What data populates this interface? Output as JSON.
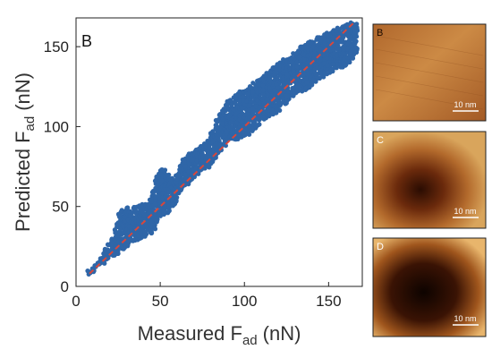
{
  "chart_data": {
    "type": "scatter",
    "panel_label": "B",
    "xlabel": "Measured F",
    "xlabel_sub": "ad",
    "xlabel_unit": "(nN)",
    "ylabel": "Predicted F",
    "ylabel_sub": "ad",
    "ylabel_unit": "(nN)",
    "xlim": [
      0,
      170
    ],
    "ylim": [
      0,
      168
    ],
    "xticks": [
      0,
      50,
      100,
      150
    ],
    "yticks": [
      0,
      50,
      100,
      150
    ],
    "grid": false,
    "point_color": "#2f66a8",
    "reference_line": {
      "x": [
        8,
        166
      ],
      "y": [
        8,
        166
      ],
      "color": "#d9473b",
      "style": "dashed"
    },
    "series": [
      {
        "x": [
          8,
          10,
          12,
          14,
          16,
          18,
          20,
          22,
          24,
          26,
          28,
          30,
          32,
          34,
          36,
          38,
          40,
          42,
          44,
          46,
          48,
          50,
          52,
          54,
          56,
          58,
          60,
          62,
          64,
          66,
          68,
          70,
          72,
          74,
          76,
          78,
          80,
          82,
          84,
          86,
          88,
          90,
          92,
          94,
          96,
          98,
          100,
          102,
          104,
          106,
          108,
          110,
          112,
          114,
          116,
          118,
          120,
          122,
          124,
          126,
          128,
          130,
          132,
          134,
          136,
          138,
          140,
          142,
          144,
          146,
          148,
          150,
          152,
          154,
          156,
          158,
          160,
          162,
          164,
          166
        ],
        "y_low": [
          7,
          9,
          11,
          13,
          14,
          16,
          18,
          19,
          20,
          22,
          23,
          25,
          27,
          28,
          29,
          30,
          31,
          32,
          33,
          35,
          40,
          44,
          45,
          46,
          47,
          49,
          53,
          57,
          61,
          64,
          66,
          68,
          70,
          72,
          73,
          74,
          76,
          78,
          80,
          84,
          88,
          90,
          91,
          92,
          92,
          93,
          94,
          95,
          97,
          99,
          101,
          103,
          104,
          106,
          107,
          108,
          110,
          112,
          114,
          116,
          118,
          120,
          121,
          122,
          123,
          124,
          126,
          128,
          130,
          131,
          132,
          133,
          134,
          135,
          136,
          137,
          138,
          140,
          142,
          145
        ],
        "y_high": [
          10,
          12,
          15,
          18,
          21,
          24,
          27,
          30,
          40,
          47,
          49,
          50,
          50,
          50,
          50,
          51,
          52,
          53,
          55,
          60,
          69,
          73,
          74,
          70,
          68,
          67,
          70,
          76,
          80,
          82,
          84,
          86,
          87,
          88,
          90,
          92,
          96,
          100,
          104,
          108,
          112,
          116,
          118,
          120,
          121,
          122,
          123,
          124,
          126,
          128,
          129,
          130,
          132,
          134,
          136,
          138,
          139,
          140,
          142,
          143,
          144,
          146,
          148,
          150,
          152,
          153,
          154,
          155,
          156,
          157,
          158,
          159,
          160,
          161,
          162,
          163,
          164,
          164,
          165,
          166
        ]
      }
    ]
  },
  "insets": [
    {
      "label": "B",
      "scale_label": "10 nm"
    },
    {
      "label": "C",
      "scale_label": "10 nm"
    },
    {
      "label": "D",
      "scale_label": "10 nm"
    }
  ]
}
